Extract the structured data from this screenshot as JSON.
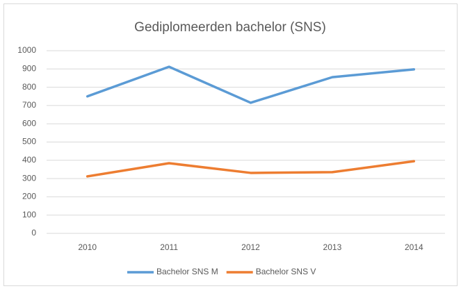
{
  "chart_data": {
    "type": "line",
    "title": "Gediplomeerden bachelor (SNS)",
    "categories": [
      "2010",
      "2011",
      "2012",
      "2013",
      "2014"
    ],
    "series": [
      {
        "name": "Bachelor SNS M",
        "color": "#5b9bd5",
        "values": [
          750,
          912,
          715,
          855,
          898
        ]
      },
      {
        "name": "Bachelor SNS V",
        "color": "#ed7d31",
        "values": [
          312,
          384,
          331,
          335,
          395
        ]
      }
    ],
    "ylim": [
      0,
      1000
    ],
    "yticks": [
      0,
      100,
      200,
      300,
      400,
      500,
      600,
      700,
      800,
      900,
      1000
    ],
    "grid": true,
    "legend": "bottom"
  }
}
